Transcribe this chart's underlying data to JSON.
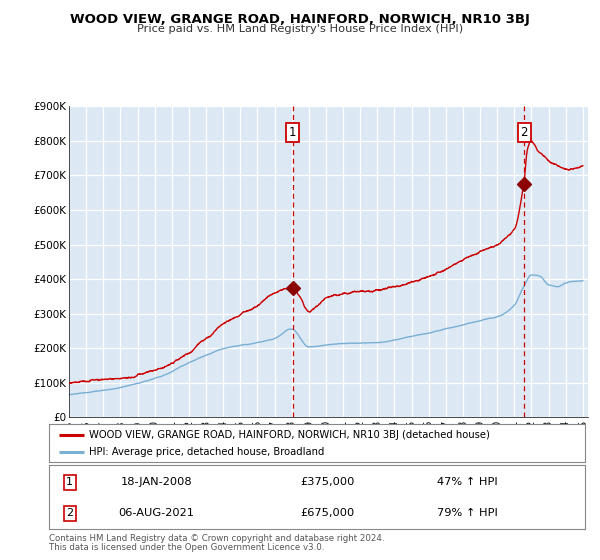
{
  "title": "WOOD VIEW, GRANGE ROAD, HAINFORD, NORWICH, NR10 3BJ",
  "subtitle": "Price paid vs. HM Land Registry's House Price Index (HPI)",
  "red_label": "WOOD VIEW, GRANGE ROAD, HAINFORD, NORWICH, NR10 3BJ (detached house)",
  "blue_label": "HPI: Average price, detached house, Broadland",
  "annotation1_date": "18-JAN-2008",
  "annotation1_price": "£375,000",
  "annotation1_hpi": "47% ↑ HPI",
  "annotation2_date": "06-AUG-2021",
  "annotation2_price": "£675,000",
  "annotation2_hpi": "79% ↑ HPI",
  "vline1_x": 2008.05,
  "vline2_x": 2021.58,
  "point1_x": 2008.05,
  "point1_y": 375000,
  "point2_x": 2021.58,
  "point2_y": 675000,
  "ylim": [
    0,
    900000
  ],
  "xlim_start": 1995,
  "xlim_end": 2025.3,
  "plot_bg_color": "#dce9f5",
  "grid_color": "#ffffff",
  "red_color": "#cc0000",
  "blue_color": "#7aafd4",
  "footer_line1": "Contains HM Land Registry data © Crown copyright and database right 2024.",
  "footer_line2": "This data is licensed under the Open Government Licence v3.0."
}
